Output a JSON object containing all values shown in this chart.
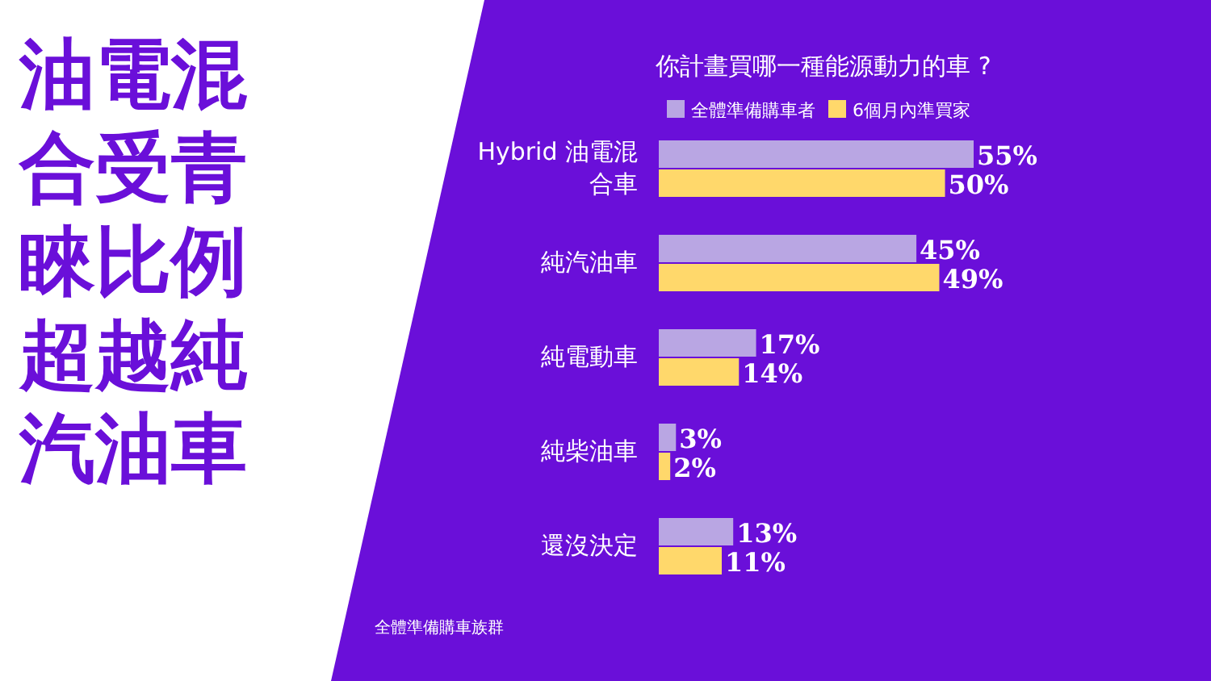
{
  "chart_data": {
    "type": "bar",
    "orientation": "horizontal",
    "title": "油電混合受青睞比例超越純汽油車",
    "subtitle": "你計畫買哪一種能源動力的車 ?",
    "categories": [
      "Hybrid 油電混合車",
      "純汽油車",
      "純電動車",
      "純柴油車",
      "還沒決定"
    ],
    "series": [
      {
        "name": "全體準備購車者",
        "color": "#b9a6e3",
        "values": [
          55,
          45,
          17,
          3,
          13
        ],
        "value_labels": [
          "55%",
          "45%",
          "17%",
          "3%",
          "13%"
        ]
      },
      {
        "name": "6個月內準買家",
        "color": "#ffd86b",
        "values": [
          50,
          49,
          14,
          2,
          11
        ],
        "value_labels": [
          "50%",
          "49%",
          "14%",
          "2%",
          "11%"
        ]
      }
    ],
    "legend": "top",
    "annotations": [
      "全體準備購車族群"
    ]
  }
}
